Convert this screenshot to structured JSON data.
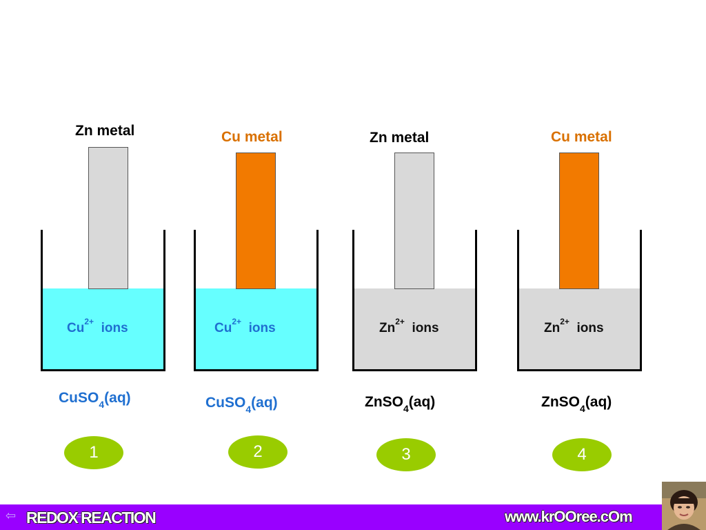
{
  "beakers": [
    {
      "metal_label": "Zn  metal",
      "metal_color": "#000000",
      "rod_color": "#d9d9d9",
      "solution_color": "#66ffff",
      "ion_symbol": "Cu",
      "ion_charge": "2+",
      "ion_word": "ions",
      "ion_color": "#1f6fd0",
      "sol_pre": "CuSO",
      "sol_sub": "4",
      "sol_post": "(aq)",
      "sol_color": "#1f6fd0",
      "badge": "1"
    },
    {
      "metal_label": "Cu  metal",
      "metal_color": "#d97000",
      "rod_color": "#f27a00",
      "solution_color": "#66ffff",
      "ion_symbol": "Cu",
      "ion_charge": "2+",
      "ion_word": "ions",
      "ion_color": "#1f6fd0",
      "sol_pre": "CuSO",
      "sol_sub": "4",
      "sol_post": "(aq)",
      "sol_color": "#1f6fd0",
      "badge": "2"
    },
    {
      "metal_label": "Zn  metal",
      "metal_color": "#000000",
      "rod_color": "#d9d9d9",
      "solution_color": "#d9d9d9",
      "ion_symbol": "Zn",
      "ion_charge": "2+",
      "ion_word": "ions",
      "ion_color": "#111111",
      "sol_pre": "ZnSO",
      "sol_sub": "4",
      "sol_post": "(aq)",
      "sol_color": "#000000",
      "badge": "3"
    },
    {
      "metal_label": "Cu  metal",
      "metal_color": "#d97000",
      "rod_color": "#f27a00",
      "solution_color": "#d9d9d9",
      "ion_symbol": "Zn",
      "ion_charge": "2+",
      "ion_word": "ions",
      "ion_color": "#111111",
      "sol_pre": "ZnSO",
      "sol_sub": "4",
      "sol_post": "(aq)",
      "sol_color": "#000000",
      "badge": "4"
    }
  ],
  "footer": {
    "title": "REDOX  REACTION",
    "url": "www.krOOree.cOm",
    "prev_icon": "arrow-left-icon",
    "next_icon": "arrow-right-icon",
    "bar_color": "#9900ff"
  },
  "badge_color": "#99cc00"
}
